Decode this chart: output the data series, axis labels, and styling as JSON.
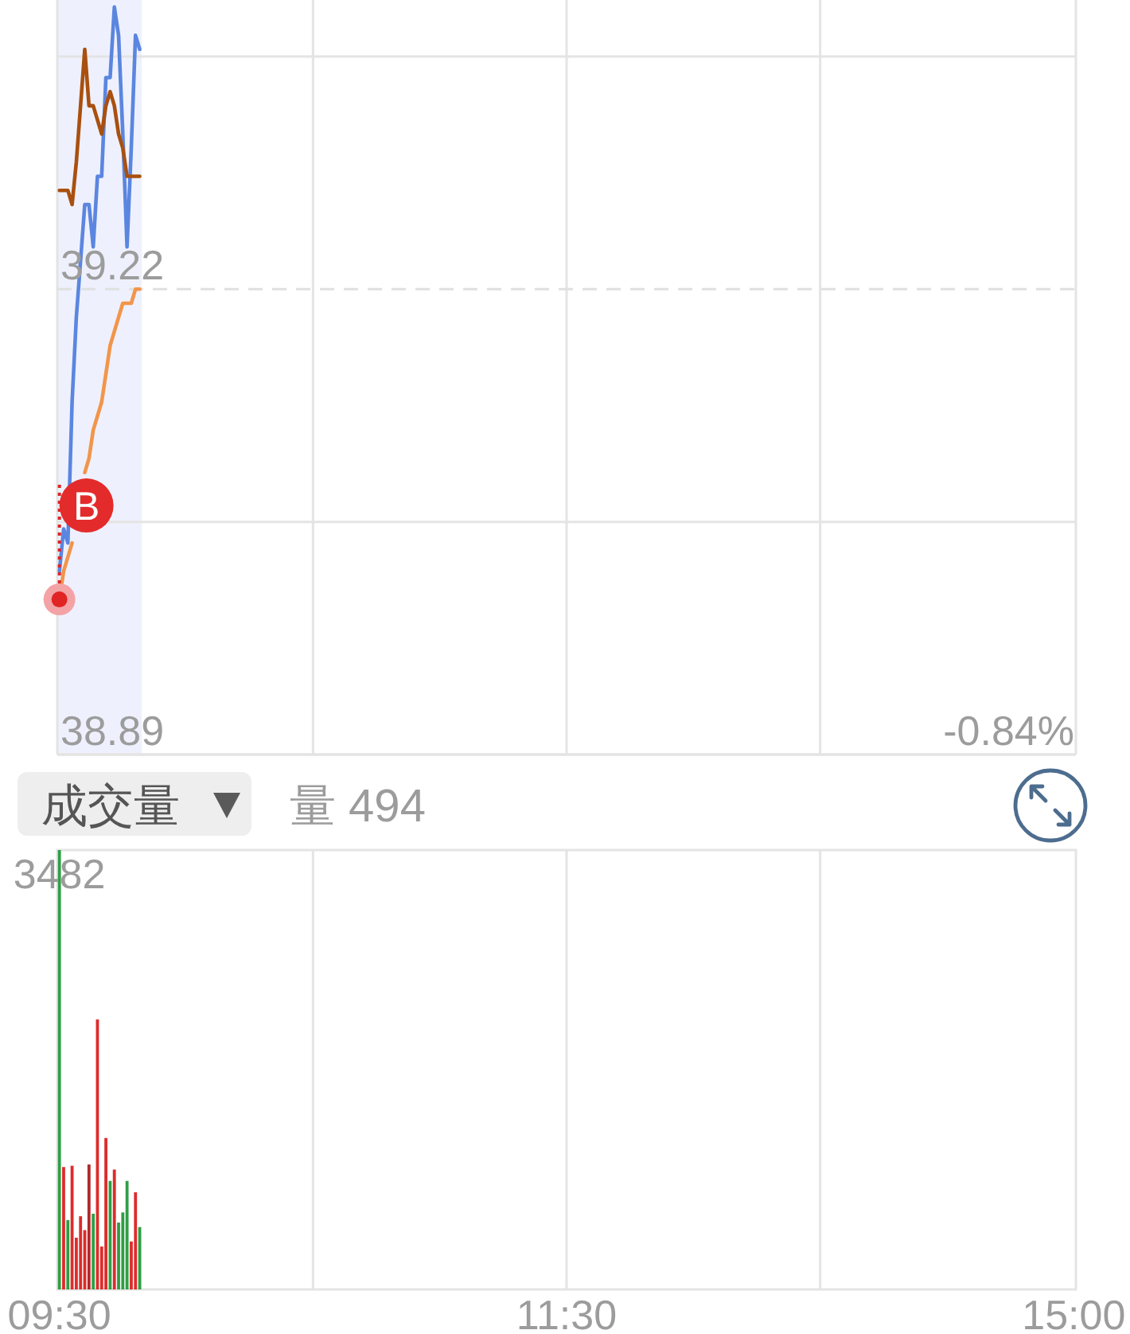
{
  "chart_data": [
    {
      "type": "line",
      "categories": [
        "09:30",
        null,
        null,
        null,
        null,
        null,
        null,
        null,
        null,
        null,
        null,
        null,
        null,
        null,
        null,
        null,
        null,
        null,
        null,
        null,
        null,
        null,
        null,
        null,
        null,
        null,
        null,
        null,
        null,
        null,
        null,
        null,
        null,
        null,
        null,
        null,
        null,
        null,
        null,
        null,
        null,
        null,
        null,
        null,
        null,
        null,
        null,
        null,
        null,
        null,
        null,
        null,
        null,
        null,
        null,
        null,
        null,
        null,
        null,
        null,
        null,
        null,
        null,
        null,
        null,
        null,
        null,
        null,
        null,
        null,
        null,
        null,
        null,
        null,
        null,
        null,
        null,
        null,
        null,
        null,
        null,
        null,
        null,
        null,
        null,
        null,
        null,
        null,
        null,
        null,
        null,
        null,
        null,
        null,
        null,
        null,
        null,
        null,
        null,
        null,
        null,
        null,
        null,
        null,
        null,
        null,
        null,
        null,
        null,
        null,
        null,
        null,
        null,
        null,
        null,
        null,
        null,
        null,
        null,
        null,
        "11:30",
        null,
        null,
        null,
        null,
        null,
        null,
        null,
        null,
        null,
        null,
        null,
        null,
        null,
        null,
        null,
        null,
        null,
        null,
        null,
        null,
        null,
        null,
        null,
        null,
        null,
        null,
        null,
        null,
        null,
        null,
        null,
        null,
        null,
        null,
        null,
        null,
        null,
        null,
        null,
        null,
        null,
        null,
        null,
        null,
        null,
        null,
        null,
        null,
        null,
        null,
        null,
        null,
        null,
        null,
        null,
        null,
        null,
        null,
        null,
        null,
        null,
        null,
        null,
        null,
        null,
        null,
        null,
        null,
        null,
        null,
        null,
        null,
        null,
        null,
        null,
        null,
        null,
        null,
        null,
        null,
        null,
        null,
        null,
        null,
        null,
        null,
        null,
        null,
        null,
        null,
        null,
        null,
        null,
        null,
        null,
        null,
        null,
        null,
        null,
        null,
        null,
        null,
        null,
        null,
        null,
        null,
        null,
        null,
        null,
        null,
        null,
        null,
        null,
        null,
        null,
        null,
        null,
        null,
        null,
        "15:00"
      ],
      "series": [
        {
          "color": "#5b86e0",
          "values": [
            39.02,
            39.05,
            39.04,
            39.14,
            39.2,
            39.24,
            39.28,
            39.28,
            39.25,
            39.3,
            39.3,
            39.37,
            39.37,
            39.42,
            39.4,
            39.33,
            39.25,
            39.32,
            39.4,
            39.39,
            null,
            null,
            null,
            null,
            null,
            null,
            null,
            null,
            null,
            null,
            null,
            null,
            null,
            null,
            null,
            null,
            null,
            null,
            null,
            null,
            null,
            null,
            null,
            null,
            null,
            null,
            null,
            null,
            null,
            null,
            null,
            null,
            null,
            null,
            null,
            null,
            null,
            null,
            null,
            null,
            null,
            null,
            null,
            null,
            null,
            null,
            null,
            null,
            null,
            null,
            null,
            null,
            null,
            null,
            null,
            null,
            null,
            null,
            null,
            null,
            null,
            null,
            null,
            null,
            null,
            null,
            null,
            null,
            null,
            null,
            null,
            null,
            null,
            null,
            null,
            null,
            null,
            null,
            null,
            null,
            null,
            null,
            null,
            null,
            null,
            null,
            null,
            null,
            null,
            null,
            null,
            null,
            null,
            null,
            null,
            null,
            null,
            null,
            null,
            null,
            null,
            null,
            null,
            null,
            null,
            null,
            null,
            null,
            null,
            null,
            null,
            null,
            null,
            null,
            null,
            null,
            null,
            null,
            null,
            null,
            null,
            null,
            null,
            null,
            null,
            null,
            null,
            null,
            null,
            null,
            null,
            null,
            null,
            null,
            null,
            null,
            null,
            null,
            null,
            null,
            null,
            null,
            null,
            null,
            null,
            null,
            null,
            null,
            null,
            null,
            null,
            null,
            null,
            null,
            null,
            null,
            null,
            null,
            null,
            null,
            null,
            null,
            null,
            null,
            null,
            null,
            null,
            null,
            null,
            null,
            null,
            null,
            null,
            null,
            null,
            null,
            null,
            null,
            null,
            null,
            null,
            null,
            null,
            null,
            null,
            null,
            null,
            null,
            null,
            null,
            null,
            null,
            null,
            null,
            null,
            null,
            null,
            null,
            null,
            null,
            null,
            null,
            null,
            null,
            null,
            null,
            null,
            null,
            null,
            null,
            null,
            null,
            null,
            null,
            null,
            null,
            null,
            null,
            null,
            null,
            null
          ]
        },
        {
          "color": "#a9500f",
          "values": [
            39.29,
            39.29,
            39.29,
            39.28,
            39.31,
            39.35,
            39.39,
            39.35,
            39.35,
            39.34,
            39.33,
            39.35,
            39.36,
            39.35,
            39.33,
            39.32,
            39.3,
            39.3,
            39.3,
            39.3,
            null,
            null,
            null,
            null,
            null,
            null,
            null,
            null,
            null,
            null,
            null,
            null,
            null,
            null,
            null,
            null,
            null,
            null,
            null,
            null,
            null,
            null,
            null,
            null,
            null,
            null,
            null,
            null,
            null,
            null,
            null,
            null,
            null,
            null,
            null,
            null,
            null,
            null,
            null,
            null,
            null,
            null,
            null,
            null,
            null,
            null,
            null,
            null,
            null,
            null,
            null,
            null,
            null,
            null,
            null,
            null,
            null,
            null,
            null,
            null,
            null,
            null,
            null,
            null,
            null,
            null,
            null,
            null,
            null,
            null,
            null,
            null,
            null,
            null,
            null,
            null,
            null,
            null,
            null,
            null,
            null,
            null,
            null,
            null,
            null,
            null,
            null,
            null,
            null,
            null,
            null,
            null,
            null,
            null,
            null,
            null,
            null,
            null,
            null,
            null,
            null,
            null,
            null,
            null,
            null,
            null,
            null,
            null,
            null,
            null,
            null,
            null,
            null,
            null,
            null,
            null,
            null,
            null,
            null,
            null,
            null,
            null,
            null,
            null,
            null,
            null,
            null,
            null,
            null,
            null,
            null,
            null,
            null,
            null,
            null,
            null,
            null,
            null,
            null,
            null,
            null,
            null,
            null,
            null,
            null,
            null,
            null,
            null,
            null,
            null,
            null,
            null,
            null,
            null,
            null,
            null,
            null,
            null,
            null,
            null,
            null,
            null,
            null,
            null,
            null,
            null,
            null,
            null,
            null,
            null,
            null,
            null,
            null,
            null,
            null,
            null,
            null,
            null,
            null,
            null,
            null,
            null,
            null,
            null,
            null,
            null,
            null,
            null,
            null,
            null,
            null,
            null,
            null,
            null,
            null,
            null,
            null,
            null,
            null,
            null,
            null,
            null,
            null,
            null,
            null,
            null,
            null,
            null,
            null,
            null,
            null,
            null,
            null,
            null,
            null,
            null,
            null,
            null,
            null,
            null,
            null
          ]
        },
        {
          "color": "#f2954b",
          "values": [
            39.0,
            39.02,
            39.03,
            39.04,
            null,
            null,
            39.09,
            39.1,
            39.12,
            39.13,
            39.14,
            39.16,
            39.18,
            39.19,
            39.2,
            39.21,
            39.21,
            39.21,
            39.22,
            39.22,
            null,
            null,
            null,
            null,
            null,
            null,
            null,
            null,
            null,
            null,
            null,
            null,
            null,
            null,
            null,
            null,
            null,
            null,
            null,
            null,
            null,
            null,
            null,
            null,
            null,
            null,
            null,
            null,
            null,
            null,
            null,
            null,
            null,
            null,
            null,
            null,
            null,
            null,
            null,
            null,
            null,
            null,
            null,
            null,
            null,
            null,
            null,
            null,
            null,
            null,
            null,
            null,
            null,
            null,
            null,
            null,
            null,
            null,
            null,
            null,
            null,
            null,
            null,
            null,
            null,
            null,
            null,
            null,
            null,
            null,
            null,
            null,
            null,
            null,
            null,
            null,
            null,
            null,
            null,
            null,
            null,
            null,
            null,
            null,
            null,
            null,
            null,
            null,
            null,
            null,
            null,
            null,
            null,
            null,
            null,
            null,
            null,
            null,
            null,
            null,
            null,
            null,
            null,
            null,
            null,
            null,
            null,
            null,
            null,
            null,
            null,
            null,
            null,
            null,
            null,
            null,
            null,
            null,
            null,
            null,
            null,
            null,
            null,
            null,
            null,
            null,
            null,
            null,
            null,
            null,
            null,
            null,
            null,
            null,
            null,
            null,
            null,
            null,
            null,
            null,
            null,
            null,
            null,
            null,
            null,
            null,
            null,
            null,
            null,
            null,
            null,
            null,
            null,
            null,
            null,
            null,
            null,
            null,
            null,
            null,
            null,
            null,
            null,
            null,
            null,
            null,
            null,
            null,
            null,
            null,
            null,
            null,
            null,
            null,
            null,
            null,
            null,
            null,
            null,
            null,
            null,
            null,
            null,
            null,
            null,
            null,
            null,
            null,
            null,
            null,
            null,
            null,
            null,
            null,
            null,
            null,
            null,
            null,
            null,
            null,
            null,
            null,
            null,
            null,
            null,
            null,
            null,
            null,
            null,
            null,
            null,
            null,
            null,
            null,
            null,
            null,
            null,
            null,
            null,
            null,
            null
          ]
        }
      ],
      "ylim": [
        38.89,
        39.425
      ],
      "yticks": [
        38.89,
        {
          "value": 39.055,
          "label": null
        },
        39.22,
        {
          "value": 39.385,
          "label": null
        }
      ],
      "tick_labels": "y",
      "grid": true,
      "ref_lines": [
        {
          "axis": "y",
          "value": 39.22,
          "line_style": "dashed",
          "color": "#e0e0e0"
        }
      ],
      "annotations": [
        {
          "text": "B",
          "x": "09:30",
          "y": 39.0
        },
        "-0.84%"
      ]
    },
    {
      "type": "bar",
      "title": "成交量",
      "subtitle": "量 494",
      "categories": [
        "09:30",
        null,
        null,
        null,
        null,
        null,
        null,
        null,
        null,
        null,
        null,
        null,
        null,
        null,
        null,
        null,
        null,
        null,
        null,
        null,
        null,
        null,
        null,
        null,
        null,
        null,
        null,
        null,
        null,
        null,
        null,
        null,
        null,
        null,
        null,
        null,
        null,
        null,
        null,
        null,
        null,
        null,
        null,
        null,
        null,
        null,
        null,
        null,
        null,
        null,
        null,
        null,
        null,
        null,
        null,
        null,
        null,
        null,
        null,
        null,
        null,
        null,
        null,
        null,
        null,
        null,
        null,
        null,
        null,
        null,
        null,
        null,
        null,
        null,
        null,
        null,
        null,
        null,
        null,
        null,
        null,
        null,
        null,
        null,
        null,
        null,
        null,
        null,
        null,
        null,
        null,
        null,
        null,
        null,
        null,
        null,
        null,
        null,
        null,
        null,
        null,
        null,
        null,
        null,
        null,
        null,
        null,
        null,
        null,
        null,
        null,
        null,
        null,
        null,
        null,
        null,
        null,
        null,
        null,
        null,
        "11:30",
        null,
        null,
        null,
        null,
        null,
        null,
        null,
        null,
        null,
        null,
        null,
        null,
        null,
        null,
        null,
        null,
        null,
        null,
        null,
        null,
        null,
        null,
        null,
        null,
        null,
        null,
        null,
        null,
        null,
        null,
        null,
        null,
        null,
        null,
        null,
        null,
        null,
        null,
        null,
        null,
        null,
        null,
        null,
        null,
        null,
        null,
        null,
        null,
        null,
        null,
        null,
        null,
        null,
        null,
        null,
        null,
        null,
        null,
        null,
        null,
        null,
        null,
        null,
        null,
        null,
        null,
        null,
        null,
        null,
        null,
        null,
        null,
        null,
        null,
        null,
        null,
        null,
        null,
        null,
        null,
        null,
        null,
        null,
        null,
        null,
        null,
        null,
        null,
        null,
        null,
        null,
        null,
        null,
        null,
        null,
        null,
        null,
        null,
        null,
        null,
        null,
        null,
        null,
        null,
        null,
        null,
        null,
        null,
        null,
        null,
        null,
        null,
        null,
        null,
        null,
        null,
        null,
        null,
        null,
        "15:00"
      ],
      "values": [
        3482,
        970,
        550,
        980,
        410,
        580,
        470,
        990,
        600,
        2140,
        340,
        1200,
        860,
        950,
        530,
        610,
        860,
        380,
        770,
        494,
        null,
        null,
        null,
        null,
        null,
        null,
        null,
        null,
        null,
        null,
        null,
        null,
        null,
        null,
        null,
        null,
        null,
        null,
        null,
        null,
        null,
        null,
        null,
        null,
        null,
        null,
        null,
        null,
        null,
        null,
        null,
        null,
        null,
        null,
        null,
        null,
        null,
        null,
        null,
        null,
        null,
        null,
        null,
        null,
        null,
        null,
        null,
        null,
        null,
        null,
        null,
        null,
        null,
        null,
        null,
        null,
        null,
        null,
        null,
        null,
        null,
        null,
        null,
        null,
        null,
        null,
        null,
        null,
        null,
        null,
        null,
        null,
        null,
        null,
        null,
        null,
        null,
        null,
        null,
        null,
        null,
        null,
        null,
        null,
        null,
        null,
        null,
        null,
        null,
        null,
        null,
        null,
        null,
        null,
        null,
        null,
        null,
        null,
        null,
        null,
        null,
        null,
        null,
        null,
        null,
        null,
        null,
        null,
        null,
        null,
        null,
        null,
        null,
        null,
        null,
        null,
        null,
        null,
        null,
        null,
        null,
        null,
        null,
        null,
        null,
        null,
        null,
        null,
        null,
        null,
        null,
        null,
        null,
        null,
        null,
        null,
        null,
        null,
        null,
        null,
        null,
        null,
        null,
        null,
        null,
        null,
        null,
        null,
        null,
        null,
        null,
        null,
        null,
        null,
        null,
        null,
        null,
        null,
        null,
        null,
        null,
        null,
        null,
        null,
        null,
        null,
        null,
        null,
        null,
        null,
        null,
        null,
        null,
        null,
        null,
        null,
        null,
        null,
        null,
        null,
        null,
        null,
        null,
        null,
        null,
        null,
        null,
        null,
        null,
        null,
        null,
        null,
        null,
        null,
        null,
        null,
        null,
        null,
        null,
        null,
        null,
        null,
        null,
        null,
        null,
        null,
        null,
        null,
        null,
        null,
        null,
        null,
        null,
        null,
        null,
        null,
        null,
        null,
        null,
        null,
        null
      ],
      "colors": [
        "#2f9e44",
        "#dd2c2c",
        "#2f9e44",
        "#dd2c2c",
        "#dd2c2c",
        "#dd2c2c",
        "#dd2c2c",
        "#b02a2a",
        "#2f9e44",
        "#dd2c2c",
        "#dd2c2c",
        "#dd2c2c",
        "#2f9e44",
        "#dd2c2c",
        "#2f9e44",
        "#2f9e44",
        "#2f9e44",
        "#dd2c2c",
        "#dd2c2c",
        "#2f9e44",
        null,
        null,
        null,
        null,
        null,
        null,
        null,
        null,
        null,
        null,
        null,
        null,
        null,
        null,
        null,
        null,
        null,
        null,
        null,
        null,
        null,
        null,
        null,
        null,
        null,
        null,
        null,
        null,
        null,
        null,
        null,
        null,
        null,
        null,
        null,
        null,
        null,
        null,
        null,
        null,
        null,
        null,
        null,
        null,
        null,
        null,
        null,
        null,
        null,
        null,
        null,
        null,
        null,
        null,
        null,
        null,
        null,
        null,
        null,
        null,
        null,
        null,
        null,
        null,
        null,
        null,
        null,
        null,
        null,
        null,
        null,
        null,
        null,
        null,
        null,
        null,
        null,
        null,
        null,
        null,
        null,
        null,
        null,
        null,
        null,
        null,
        null,
        null,
        null,
        null,
        null,
        null,
        null,
        null,
        null,
        null,
        null,
        null,
        null,
        null,
        null,
        null,
        null,
        null,
        null,
        null,
        null,
        null,
        null,
        null,
        null,
        null,
        null,
        null,
        null,
        null,
        null,
        null,
        null,
        null,
        null,
        null,
        null,
        null,
        null,
        null,
        null,
        null,
        null,
        null,
        null,
        null,
        null,
        null,
        null,
        null,
        null,
        null,
        null,
        null,
        null,
        null,
        null,
        null,
        null,
        null,
        null,
        null,
        null,
        null,
        null,
        null,
        null,
        null,
        null,
        null,
        null,
        null,
        null,
        null,
        null,
        null,
        null,
        null,
        null,
        null,
        null,
        null,
        null,
        null,
        null,
        null,
        null,
        null,
        null,
        null,
        null,
        null,
        null,
        null,
        null,
        null,
        null,
        null,
        null,
        null,
        null,
        null,
        null,
        null,
        null,
        null,
        null,
        null,
        null,
        null,
        null,
        null,
        null,
        null,
        null,
        null,
        null,
        null,
        null,
        null,
        null,
        null,
        null,
        null,
        null,
        null,
        null,
        null,
        null,
        null,
        null,
        null,
        null,
        null,
        null
      ],
      "value_labels": [
        "3482",
        null,
        null,
        null,
        null,
        null,
        null,
        null,
        null,
        null,
        null,
        null,
        null,
        null,
        null,
        null,
        null,
        null,
        null,
        null,
        null,
        null,
        null,
        null,
        null,
        null,
        null,
        null,
        null,
        null,
        null,
        null,
        null,
        null,
        null,
        null,
        null,
        null,
        null,
        null,
        null,
        null,
        null,
        null,
        null,
        null,
        null,
        null,
        null,
        null,
        null,
        null,
        null,
        null,
        null,
        null,
        null,
        null,
        null,
        null,
        null,
        null,
        null,
        null,
        null,
        null,
        null,
        null,
        null,
        null,
        null,
        null,
        null,
        null,
        null,
        null,
        null,
        null,
        null,
        null,
        null,
        null,
        null,
        null,
        null,
        null,
        null,
        null,
        null,
        null,
        null,
        null,
        null,
        null,
        null,
        null,
        null,
        null,
        null,
        null,
        null,
        null,
        null,
        null,
        null,
        null,
        null,
        null,
        null,
        null,
        null,
        null,
        null,
        null,
        null,
        null,
        null,
        null,
        null,
        null,
        null,
        null,
        null,
        null,
        null,
        null,
        null,
        null,
        null,
        null,
        null,
        null,
        null,
        null,
        null,
        null,
        null,
        null,
        null,
        null,
        null,
        null,
        null,
        null,
        null,
        null,
        null,
        null,
        null,
        null,
        null,
        null,
        null,
        null,
        null,
        null,
        null,
        null,
        null,
        null,
        null,
        null,
        null,
        null,
        null,
        null,
        null,
        null,
        null,
        null,
        null,
        null,
        null,
        null,
        null,
        null,
        null,
        null,
        null,
        null,
        null,
        null,
        null,
        null,
        null,
        null,
        null,
        null,
        null,
        null,
        null,
        null,
        null,
        null,
        null,
        null,
        null,
        null,
        null,
        null,
        null,
        null,
        null,
        null,
        null,
        null,
        null,
        null,
        null,
        null,
        null,
        null,
        null,
        null,
        null,
        null,
        null,
        null,
        null,
        null,
        null,
        null,
        null,
        null,
        null,
        null,
        null,
        null,
        null,
        null,
        null,
        null,
        null,
        null,
        null,
        null,
        null,
        null,
        null,
        null,
        null
      ],
      "grid": "x"
    }
  ]
}
